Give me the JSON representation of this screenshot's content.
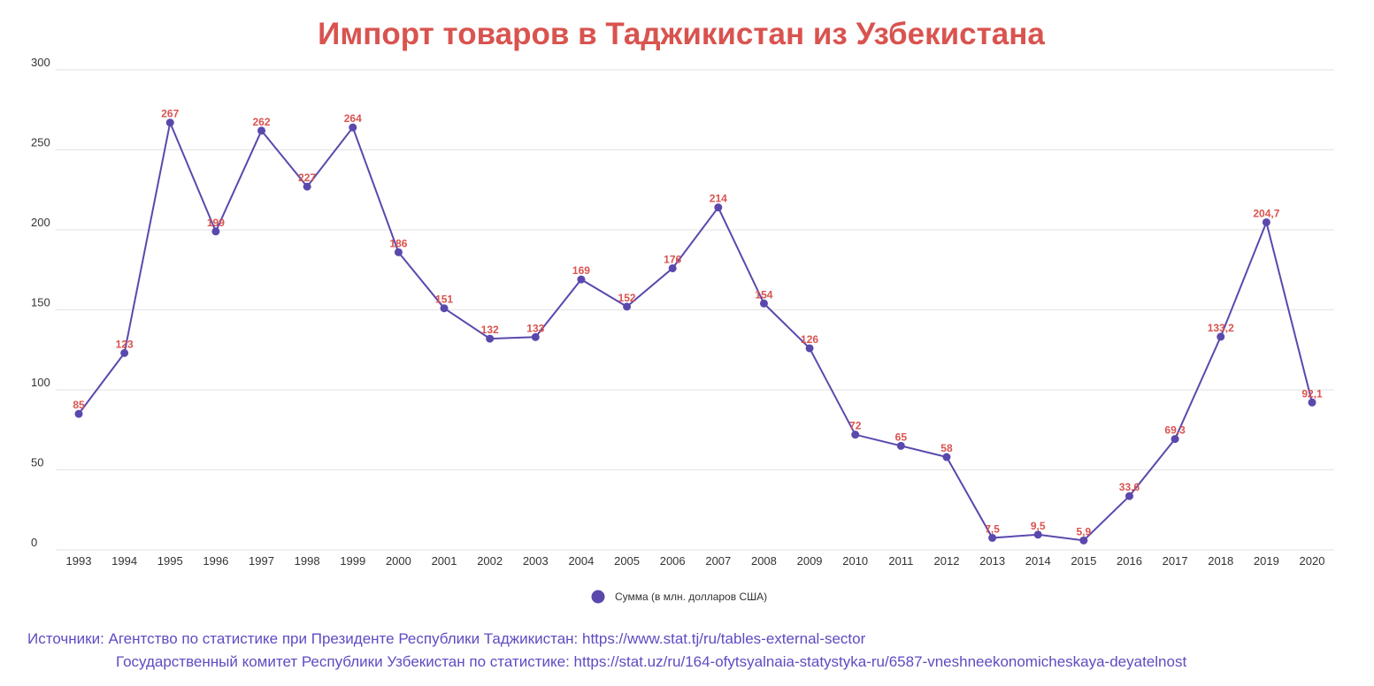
{
  "colors": {
    "title": "#d9534f",
    "series": "#5b48ad",
    "data_label": "#d9534f",
    "grid": "#e2e2e2",
    "source": "#5f4bc2"
  },
  "sources": {
    "line1": "Источники: Агентство по статистике при Президенте Республики Таджикистан: https://www.stat.tj/ru/tables-external-sector",
    "line2": "Государственный комитет Республики Узбекистан по статистике: https://stat.uz/ru/164-ofytsyalnaia-statystyka-ru/6587-vneshneekonomicheskaya-deyatelnost"
  },
  "chart_data": {
    "type": "line",
    "title": "Импорт товаров в Таджикистан из Узбекистана",
    "xlabel": "",
    "ylabel": "",
    "ylim": [
      0,
      300
    ],
    "yticks": [
      "0",
      "50",
      "100",
      "150",
      "200",
      "250",
      "300"
    ],
    "grid": true,
    "legend_position": "bottom-center",
    "categories": [
      "1993",
      "1994",
      "1995",
      "1996",
      "1997",
      "1998",
      "1999",
      "2000",
      "2001",
      "2002",
      "2003",
      "2004",
      "2005",
      "2006",
      "2007",
      "2008",
      "2009",
      "2010",
      "2011",
      "2012",
      "2013",
      "2014",
      "2015",
      "2016",
      "2017",
      "2018",
      "2019",
      "2020"
    ],
    "series": [
      {
        "name": "Сумма (в млн. долларов США)",
        "values": [
          85,
          123,
          267,
          199,
          262,
          227,
          264,
          186,
          151,
          132,
          133,
          169,
          152,
          176,
          214,
          154,
          126,
          72,
          65,
          58,
          7.5,
          9.5,
          5.9,
          33.6,
          69.3,
          133.2,
          204.7,
          92.1
        ],
        "labels": [
          "85",
          "123",
          "267",
          "199",
          "262",
          "227",
          "264",
          "186",
          "151",
          "132",
          "133",
          "169",
          "152",
          "176",
          "214",
          "154",
          "126",
          "72",
          "65",
          "58",
          "7,5",
          "9,5",
          "5,9",
          "33,6",
          "69,3",
          "133,2",
          "204,7",
          "92,1"
        ]
      }
    ]
  }
}
